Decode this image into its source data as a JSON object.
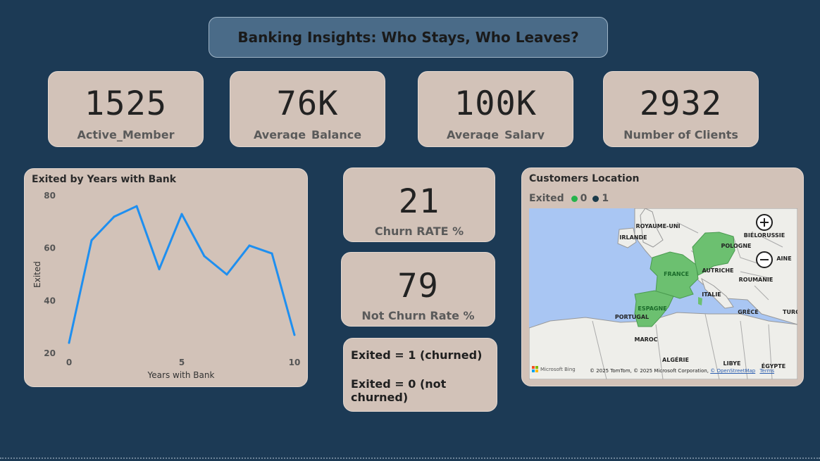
{
  "header": {
    "title": "Banking Insights: Who Stays, Who Leaves?"
  },
  "kpis": [
    {
      "value": "1525",
      "label": "Active_Member"
    },
    {
      "value": "76K",
      "label": "Average_Balance"
    },
    {
      "value": "100K",
      "label": "Average_Salary"
    },
    {
      "value": "2932",
      "label": "Number of Clients"
    }
  ],
  "line_chart": {
    "title": "Exited by Years with Bank",
    "chart_data": {
      "type": "line",
      "title": "Exited by Years with Bank",
      "xlabel": "Years with Bank",
      "ylabel": "Exited",
      "x": [
        0,
        1,
        2,
        3,
        4,
        5,
        6,
        7,
        8,
        9,
        10
      ],
      "series": [
        {
          "values": [
            24,
            63,
            72,
            76,
            52,
            73,
            57,
            50,
            61,
            58,
            27
          ]
        }
      ],
      "xlim": [
        0,
        10
      ],
      "ylim": [
        20,
        80
      ],
      "x_ticks": [
        "0",
        "5",
        "10"
      ],
      "y_ticks": [
        "20",
        "40",
        "60",
        "80"
      ],
      "line_color": "#1e8ff0",
      "grid": false
    }
  },
  "churn": {
    "value": "21",
    "label": "Churn RATE %"
  },
  "not_churn": {
    "value": "79",
    "label": "Not Churn Rate %"
  },
  "legend_note": {
    "line1": "Exited = 1 (churned)",
    "line2": "Exited = 0 (not churned)"
  },
  "map": {
    "title": "Customers Location",
    "legend_label": "Exited",
    "legend_items": [
      {
        "label": "0",
        "color": "#25b34b"
      },
      {
        "label": "1",
        "color": "#1a3a4a"
      }
    ],
    "countries": [
      "ROYAUME-UNI",
      "IRLANDE",
      "BIÉLORUSSIE",
      "POLOGNE",
      "FRANCE",
      "AUTRICHE",
      "AINE",
      "ROUMANIE",
      "ITALIE",
      "ESPAGNE",
      "PORTUGAL",
      "GRÈCE",
      "TURC",
      "MAROC",
      "ALGÉRIE",
      "LIBYE",
      "ÉGYPTE"
    ],
    "attribution": "© 2025 TomTom, © 2025 Microsoft Corporation,",
    "osm_link": "© OpenStreetMap",
    "terms_link": "Terms",
    "bing_logo": "Microsoft Bing",
    "highlight_color": "#6cc070"
  }
}
